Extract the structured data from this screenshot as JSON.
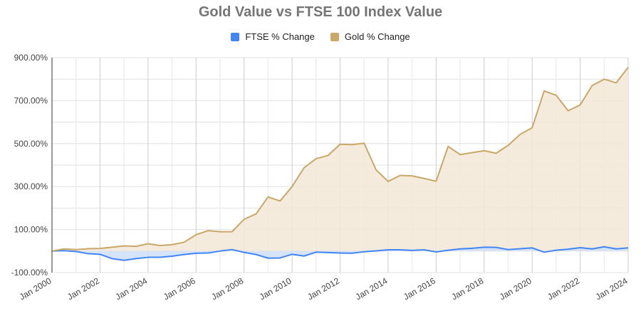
{
  "chart_data": {
    "type": "area",
    "title": "Gold Value vs FTSE 100 Index Value",
    "xlabel": "",
    "ylabel": "",
    "ylim": [
      -100,
      900
    ],
    "y_ticks": [
      "900.00%",
      "700.00%",
      "500.00%",
      "300.00%",
      "100.00%",
      "-100.00%"
    ],
    "y_tick_values": [
      900,
      700,
      500,
      300,
      100,
      -100
    ],
    "x_ticks": [
      "Jan 2000",
      "Jan 2002",
      "Jan 2004",
      "Jan 2006",
      "Jan 2008",
      "Jan 2010",
      "Jan 2012",
      "Jan 2014",
      "Jan 2016",
      "Jan 2018",
      "Jan 2020",
      "Jan 2022",
      "Jan 2024"
    ],
    "x_tick_values": [
      2000,
      2002,
      2004,
      2006,
      2008,
      2010,
      2012,
      2014,
      2016,
      2018,
      2020,
      2022,
      2024
    ],
    "x": [
      2000.0,
      2000.5,
      2001.0,
      2001.5,
      2002.0,
      2002.5,
      2003.0,
      2003.5,
      2004.0,
      2004.5,
      2005.0,
      2005.5,
      2006.0,
      2006.5,
      2007.0,
      2007.5,
      2008.0,
      2008.5,
      2009.0,
      2009.5,
      2010.0,
      2010.5,
      2011.0,
      2011.5,
      2012.0,
      2012.5,
      2013.0,
      2013.5,
      2014.0,
      2014.5,
      2015.0,
      2015.5,
      2016.0,
      2016.5,
      2017.0,
      2017.5,
      2018.0,
      2018.5,
      2019.0,
      2019.5,
      2020.0,
      2020.5,
      2021.0,
      2021.5,
      2022.0,
      2022.5,
      2023.0,
      2023.5,
      2024.0
    ],
    "series": [
      {
        "name": "FTSE % Change",
        "color": "#4285f4",
        "fill": "#cfdff8",
        "values": [
          0,
          2,
          -2,
          -12,
          -15,
          -35,
          -43,
          -35,
          -29,
          -29,
          -24,
          -16,
          -10,
          -9,
          0,
          7,
          -6,
          -16,
          -33,
          -32,
          -15,
          -23,
          -5,
          -7,
          -9,
          -10,
          -3,
          1,
          6,
          6,
          3,
          6,
          -4,
          4,
          10,
          13,
          18,
          17,
          7,
          11,
          15,
          -5,
          4,
          9,
          16,
          10,
          20,
          10,
          15
        ]
      },
      {
        "name": "Gold % Change",
        "color": "#c9a769",
        "fill": "#f3e7d6",
        "values": [
          0,
          10,
          7,
          11,
          12,
          18,
          24,
          22,
          34,
          26,
          30,
          41,
          76,
          95,
          90,
          90,
          148,
          173,
          252,
          233,
          300,
          388,
          430,
          445,
          497,
          495,
          502,
          378,
          324,
          352,
          350,
          338,
          325,
          487,
          449,
          458,
          467,
          455,
          492,
          543,
          574,
          745,
          725,
          653,
          680,
          770,
          800,
          783,
          855
        ]
      }
    ],
    "grid": true,
    "legend": "top"
  }
}
